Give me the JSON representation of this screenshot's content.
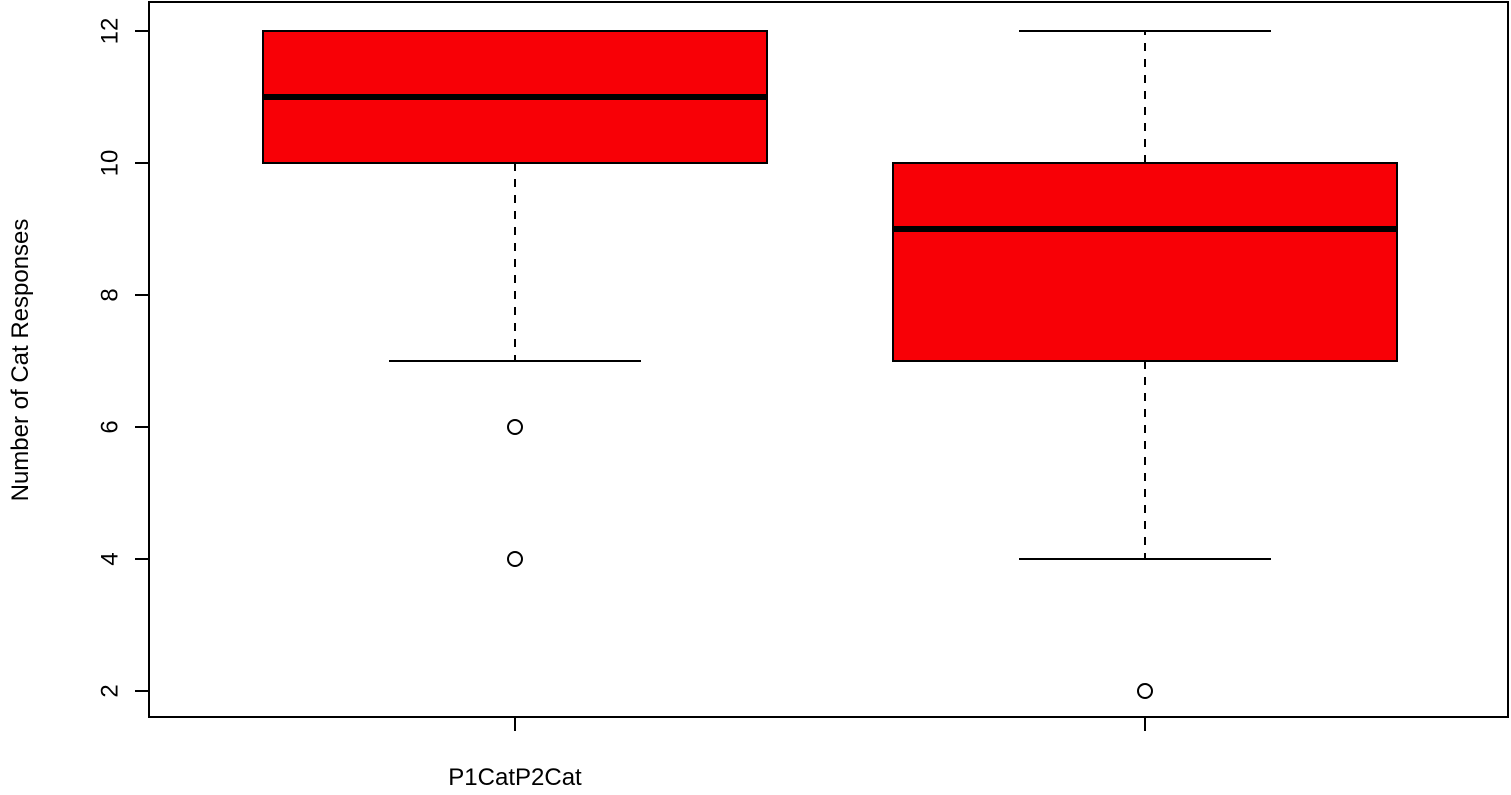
{
  "chart_data": {
    "type": "boxplot",
    "title": "",
    "xlabel": "",
    "ylabel": "Number of Cat Responses",
    "ylim": [
      1.6,
      12.4
    ],
    "yticks": [
      2,
      4,
      6,
      8,
      10,
      12
    ],
    "x_tick_label": "P1CatP2Cat",
    "box_fill": "#f80006",
    "grid": false,
    "legend": "none",
    "boxes": [
      {
        "q1": 10,
        "median": 11,
        "q3": 12,
        "whisker_low": 7,
        "whisker_high": 12,
        "outliers": [
          6,
          4
        ]
      },
      {
        "q1": 7,
        "median": 9,
        "q3": 10,
        "whisker_low": 4,
        "whisker_high": 12,
        "outliers": [
          2
        ]
      }
    ]
  }
}
